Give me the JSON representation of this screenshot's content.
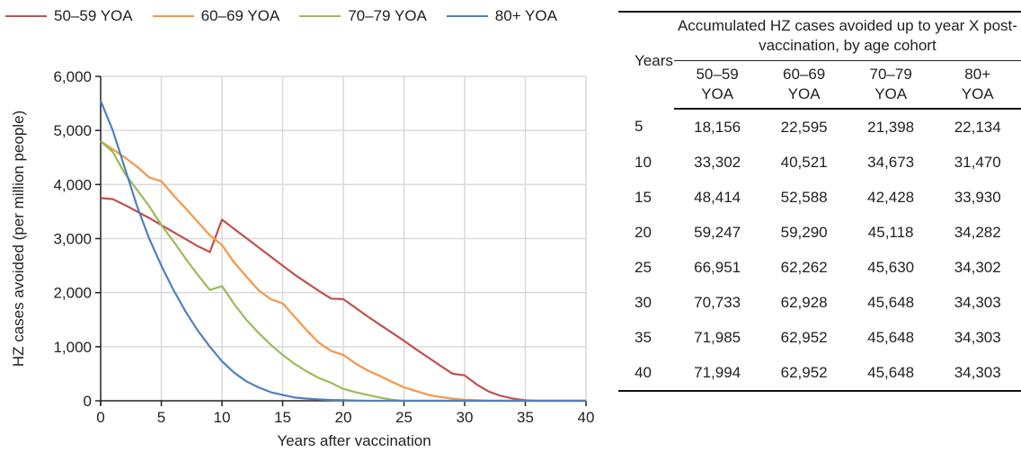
{
  "chart_data": {
    "type": "line",
    "xlabel": "Years after vaccination",
    "ylabel": "HZ cases avoided (per million people)",
    "xlim": [
      0,
      40
    ],
    "ylim": [
      0,
      6000
    ],
    "xticks": [
      "0",
      "5",
      "10",
      "15",
      "20",
      "25",
      "30",
      "35",
      "40"
    ],
    "yticks": [
      "0",
      "1,000",
      "2,000",
      "3,000",
      "4,000",
      "5,000",
      "6,000"
    ],
    "grid": true,
    "legend_position": "top",
    "x": [
      0,
      1,
      2,
      3,
      4,
      5,
      6,
      7,
      8,
      9,
      10,
      11,
      12,
      13,
      14,
      15,
      16,
      17,
      18,
      19,
      20,
      21,
      22,
      23,
      24,
      25,
      26,
      27,
      28,
      29,
      30,
      31,
      32,
      33,
      34,
      35,
      36,
      37,
      38,
      39,
      40
    ],
    "series": [
      {
        "name": "50–59 YOA",
        "color": "#c0504d",
        "values": [
          3750,
          3730,
          3620,
          3500,
          3380,
          3250,
          3120,
          2990,
          2860,
          2750,
          3350,
          3180,
          3010,
          2840,
          2670,
          2500,
          2330,
          2180,
          2030,
          1890,
          1880,
          1720,
          1560,
          1410,
          1260,
          1110,
          950,
          800,
          650,
          500,
          470,
          300,
          170,
          90,
          40,
          10,
          0,
          0,
          0,
          0,
          0
        ]
      },
      {
        "name": "60–69 YOA",
        "color": "#f79646",
        "values": [
          4800,
          4650,
          4500,
          4330,
          4130,
          4060,
          3800,
          3560,
          3310,
          3060,
          2880,
          2560,
          2300,
          2050,
          1880,
          1800,
          1550,
          1300,
          1070,
          920,
          850,
          690,
          560,
          460,
          350,
          250,
          180,
          110,
          70,
          40,
          20,
          10,
          0,
          0,
          0,
          0,
          0,
          0,
          0,
          0,
          0
        ]
      },
      {
        "name": "70–79 YOA",
        "color": "#9bbb59",
        "values": [
          4800,
          4600,
          4200,
          3900,
          3600,
          3250,
          2950,
          2630,
          2330,
          2050,
          2120,
          1790,
          1500,
          1260,
          1040,
          850,
          680,
          540,
          420,
          330,
          220,
          160,
          110,
          60,
          20,
          0,
          0,
          0,
          0,
          0,
          0,
          0,
          0,
          0,
          0,
          0,
          0,
          0,
          0,
          0,
          0
        ]
      },
      {
        "name": "80+ YOA",
        "color": "#4f81bd",
        "values": [
          5550,
          5000,
          4300,
          3600,
          3000,
          2500,
          2050,
          1650,
          1300,
          1000,
          730,
          520,
          360,
          250,
          160,
          110,
          60,
          40,
          25,
          15,
          10,
          5,
          0,
          0,
          0,
          0,
          0,
          0,
          0,
          0,
          0,
          0,
          0,
          0,
          0,
          0,
          0,
          0,
          0,
          0,
          0
        ]
      }
    ]
  },
  "table": {
    "group_header": "Accumulated HZ cases avoided up to year X post-vaccination, by age cohort",
    "years_header": "Years",
    "columns": [
      "50–59 YOA",
      "60–69 YOA",
      "70–79 YOA",
      "80+ YOA"
    ],
    "rows": [
      {
        "year": "5",
        "values": [
          "18,156",
          "22,595",
          "21,398",
          "22,134"
        ]
      },
      {
        "year": "10",
        "values": [
          "33,302",
          "40,521",
          "34,673",
          "31,470"
        ]
      },
      {
        "year": "15",
        "values": [
          "48,414",
          "52,588",
          "42,428",
          "33,930"
        ]
      },
      {
        "year": "20",
        "values": [
          "59,247",
          "59,290",
          "45,118",
          "34,282"
        ]
      },
      {
        "year": "25",
        "values": [
          "66,951",
          "62,262",
          "45,630",
          "34,302"
        ]
      },
      {
        "year": "30",
        "values": [
          "70,733",
          "62,928",
          "45,648",
          "34,303"
        ]
      },
      {
        "year": "35",
        "values": [
          "71,985",
          "62,952",
          "45,648",
          "34,303"
        ]
      },
      {
        "year": "40",
        "values": [
          "71,994",
          "62,952",
          "45,648",
          "34,303"
        ]
      }
    ]
  }
}
